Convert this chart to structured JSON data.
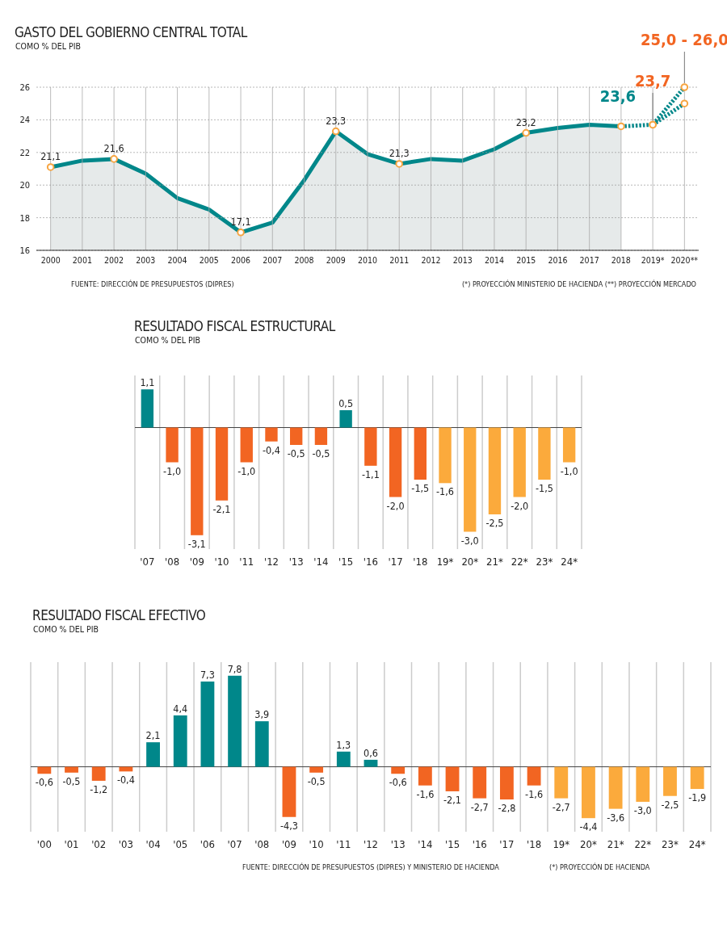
{
  "chart_data": [
    {
      "type": "line",
      "title": "GASTO DEL GOBIERNO CENTRAL TOTAL",
      "subtitle": "COMO % DEL PIB",
      "x": [
        2000,
        2001,
        2002,
        2003,
        2004,
        2005,
        2006,
        2007,
        2008,
        2009,
        2010,
        2011,
        2012,
        2013,
        2014,
        2015,
        2016,
        2017,
        2018
      ],
      "series": [
        {
          "type": "area",
          "color": "#00878a",
          "line_style": "solid",
          "values": [
            21.1,
            21.5,
            21.6,
            20.7,
            19.2,
            18.5,
            17.1,
            17.7,
            20.3,
            23.3,
            21.9,
            21.3,
            21.6,
            21.5,
            22.2,
            23.2,
            23.5,
            23.7,
            23.6
          ],
          "value_labels": [
            "21,1",
            null,
            "21,6",
            null,
            null,
            null,
            "17,1",
            null,
            null,
            "23,3",
            null,
            "21,3",
            null,
            null,
            null,
            "23,2",
            null,
            null,
            null
          ]
        },
        {
          "type": "line",
          "color": "#00878a",
          "line_style": "dotted",
          "marker": "circle",
          "x": [
            2018,
            2019,
            2020
          ],
          "values": [
            23.6,
            23.7,
            26.0
          ],
          "value_labels": [
            "23,6",
            null,
            null
          ]
        },
        {
          "type": "line",
          "color": "#00878a",
          "line_style": "dotted",
          "marker": "circle",
          "x": [
            2019,
            2020
          ],
          "values": [
            23.7,
            25.0
          ]
        }
      ],
      "xlim": [
        1999.55,
        2020.45
      ],
      "xticks": [
        2000,
        2001,
        2002,
        2003,
        2004,
        2005,
        2006,
        2007,
        2008,
        2009,
        2010,
        2011,
        2012,
        2013,
        2014,
        2015,
        2016,
        2017,
        2018,
        {
          "value": 2019,
          "label": "2019*"
        },
        {
          "value": 2020,
          "label": "2020**"
        }
      ],
      "ylim": [
        16,
        26
      ],
      "yticks": [
        16,
        18,
        20,
        22,
        24,
        26
      ],
      "grid": true,
      "annotations": [
        {
          "text": "23,7",
          "x": 2019,
          "y": 23.7
        },
        {
          "text": "25,0 - 26,0",
          "x": 2020,
          "y": 26
        },
        "FUENTE: DIRECCIÓN DE PRESUPUESTOS (DIPRES)",
        "(*) PROYECCIÓN MINISTERIO DE HACIENDA  (**) PROYECCIÓN MERCADO"
      ]
    },
    {
      "type": "bar",
      "title": "RESULTADO FISCAL ESTRUCTURAL",
      "subtitle": "COMO % DEL PIB",
      "categories": [
        "'07",
        "'08",
        "'09",
        "'10",
        "'11",
        "'12",
        "'13",
        "'14",
        "'15",
        "'16",
        "'17",
        "'18",
        "19*",
        "20*",
        "21*",
        "22*",
        "23*",
        "24*"
      ],
      "values": [
        1.1,
        -1.0,
        -3.1,
        -2.1,
        -1.0,
        -0.4,
        -0.5,
        -0.5,
        0.5,
        -1.1,
        -2.0,
        -1.5,
        -1.6,
        -3.0,
        -2.5,
        -2.0,
        -1.5,
        -1.0
      ],
      "value_labels": [
        "1,1",
        "-1,0",
        "-3,1",
        "-2,1",
        "-1,0",
        "-0,4",
        "-0,5",
        "-0,5",
        "0,5",
        "-1,1",
        "-2,0",
        "-1,5",
        "-1,6",
        "-3,0",
        "-2,5",
        "-2,0",
        "-1,5",
        "-1,0"
      ],
      "colors": [
        "#00878a",
        "#f26522",
        "#f26522",
        "#f26522",
        "#f26522",
        "#f26522",
        "#f26522",
        "#f26522",
        "#00878a",
        "#f26522",
        "#f26522",
        "#f26522",
        "#fbaa3c",
        "#fbaa3c",
        "#fbaa3c",
        "#fbaa3c",
        "#fbaa3c",
        "#fbaa3c"
      ]
    },
    {
      "type": "bar",
      "title": "RESULTADO FISCAL EFECTIVO",
      "subtitle": "COMO % DEL PIB",
      "categories": [
        "'00",
        "'01",
        "'02",
        "'03",
        "'04",
        "'05",
        "'06",
        "'07",
        "'08",
        "'09",
        "'10",
        "'11",
        "'12",
        "'13",
        "'14",
        "'15",
        "'16",
        "'17",
        "'18",
        "19*",
        "20*",
        "21*",
        "22*",
        "23*",
        "24*"
      ],
      "values": [
        -0.6,
        -0.5,
        -1.2,
        -0.4,
        2.1,
        4.4,
        7.3,
        7.8,
        3.9,
        -4.3,
        -0.5,
        1.3,
        0.6,
        -0.6,
        -1.6,
        -2.1,
        -2.7,
        -2.8,
        -1.6,
        -2.7,
        -4.4,
        -3.6,
        -3.0,
        -2.5,
        -1.9
      ],
      "value_labels": [
        "-0,6",
        "-0,5",
        "-1,2",
        "-0,4",
        "2,1",
        "4,4",
        "7,3",
        "7,8",
        "3,9",
        "-4,3",
        "-0,5",
        "1,3",
        "0,6",
        "-0,6",
        "-1,6",
        "-2,1",
        "-2,7",
        "-2,8",
        "-1,6",
        "-2,7",
        "-4,4",
        "-3,6",
        "-3,0",
        "-2,5",
        "-1,9"
      ],
      "colors": [
        "#f26522",
        "#f26522",
        "#f26522",
        "#f26522",
        "#00878a",
        "#00878a",
        "#00878a",
        "#00878a",
        "#00878a",
        "#f26522",
        "#f26522",
        "#00878a",
        "#00878a",
        "#f26522",
        "#f26522",
        "#f26522",
        "#f26522",
        "#f26522",
        "#f26522",
        "#fbaa3c",
        "#fbaa3c",
        "#fbaa3c",
        "#fbaa3c",
        "#fbaa3c",
        "#fbaa3c"
      ],
      "annotations": [
        "FUENTE: DIRECCIÓN DE PRESUPUESTOS (DIPRES) Y MINISTERIO DE HACIENDA",
        "(*) PROYECCIÓN DE HACIENDA"
      ]
    }
  ]
}
